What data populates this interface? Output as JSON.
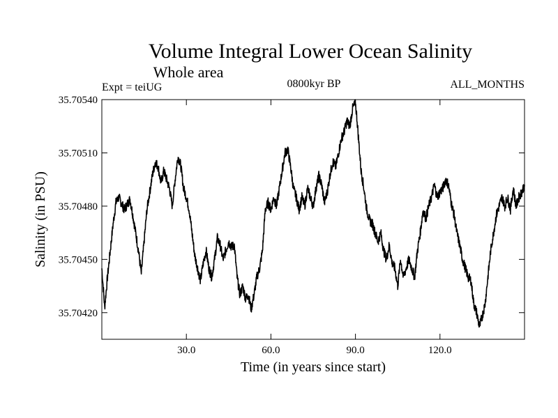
{
  "chart_data": {
    "type": "line",
    "title": "Volume Integral Lower Ocean Salinity",
    "subtitle": "Whole area",
    "expt_label": "Expt = teiUG",
    "period_label": "0800kyr BP",
    "months_label": "ALL_MONTHS",
    "xlabel": "Time (in years since start)",
    "ylabel": "Salinity (in PSU)",
    "xlim": [
      0,
      150
    ],
    "ylim": [
      35.70405,
      35.7054
    ],
    "xticks": [
      30,
      60,
      90,
      120
    ],
    "xtick_labels": [
      "30.0",
      "60.0",
      "90.0",
      "120.0"
    ],
    "yticks": [
      35.7042,
      35.7045,
      35.7048,
      35.7051,
      35.7054
    ],
    "ytick_labels": [
      "35.70420",
      "35.70450",
      "35.70480",
      "35.70510",
      "35.70540"
    ],
    "line_color": "#000000",
    "series": [
      {
        "name": "salinity",
        "points": [
          [
            0.0,
            35.70445
          ],
          [
            1.0,
            35.70423
          ],
          [
            2.0,
            35.7044
          ],
          [
            3.0,
            35.70455
          ],
          [
            4.0,
            35.7047
          ],
          [
            5.0,
            35.70482
          ],
          [
            6.0,
            35.70485
          ],
          [
            8.0,
            35.70478
          ],
          [
            10.0,
            35.70484
          ],
          [
            11.0,
            35.70475
          ],
          [
            12.0,
            35.70465
          ],
          [
            13.0,
            35.70455
          ],
          [
            14.0,
            35.70442
          ],
          [
            15.0,
            35.7046
          ],
          [
            16.0,
            35.70478
          ],
          [
            17.0,
            35.70488
          ],
          [
            18.0,
            35.70498
          ],
          [
            19.0,
            35.70505
          ],
          [
            20.0,
            35.70502
          ],
          [
            21.0,
            35.70493
          ],
          [
            22.0,
            35.705
          ],
          [
            23.0,
            35.70495
          ],
          [
            24.0,
            35.7049
          ],
          [
            25.0,
            35.7048
          ],
          [
            26.0,
            35.70495
          ],
          [
            27.0,
            35.70508
          ],
          [
            28.0,
            35.70503
          ],
          [
            29.0,
            35.7049
          ],
          [
            30.0,
            35.70485
          ],
          [
            31.0,
            35.70478
          ],
          [
            32.0,
            35.70465
          ],
          [
            33.0,
            35.70452
          ],
          [
            34.0,
            35.70445
          ],
          [
            35.0,
            35.70438
          ],
          [
            36.0,
            35.70448
          ],
          [
            37.0,
            35.70455
          ],
          [
            38.0,
            35.70445
          ],
          [
            39.0,
            35.7044
          ],
          [
            40.0,
            35.7045
          ],
          [
            41.0,
            35.70462
          ],
          [
            42.0,
            35.70458
          ],
          [
            43.0,
            35.7045
          ],
          [
            44.0,
            35.70455
          ],
          [
            45.0,
            35.7046
          ],
          [
            46.0,
            35.70457
          ],
          [
            47.0,
            35.70458
          ],
          [
            48.0,
            35.7044
          ],
          [
            49.0,
            35.7043
          ],
          [
            50.0,
            35.70435
          ],
          [
            51.0,
            35.70428
          ],
          [
            52.0,
            35.7043
          ],
          [
            53.0,
            35.70422
          ],
          [
            54.0,
            35.7043
          ],
          [
            55.0,
            35.7044
          ],
          [
            56.0,
            35.70445
          ],
          [
            57.0,
            35.70455
          ],
          [
            58.0,
            35.70478
          ],
          [
            59.0,
            35.70482
          ],
          [
            60.0,
            35.70478
          ],
          [
            61.0,
            35.70485
          ],
          [
            62.0,
            35.7048
          ],
          [
            63.0,
            35.7049
          ],
          [
            64.0,
            35.705
          ],
          [
            65.0,
            35.7051
          ],
          [
            66.0,
            35.70512
          ],
          [
            67.0,
            35.70502
          ],
          [
            68.0,
            35.7049
          ],
          [
            69.0,
            35.70485
          ],
          [
            70.0,
            35.70478
          ],
          [
            71.0,
            35.70485
          ],
          [
            72.0,
            35.7048
          ],
          [
            73.0,
            35.7049
          ],
          [
            74.0,
            35.70485
          ],
          [
            75.0,
            35.7048
          ],
          [
            76.0,
            35.7049
          ],
          [
            77.0,
            35.70497
          ],
          [
            78.0,
            35.70492
          ],
          [
            79.0,
            35.70482
          ],
          [
            80.0,
            35.70488
          ],
          [
            81.0,
            35.70498
          ],
          [
            82.0,
            35.70505
          ],
          [
            83.0,
            35.70502
          ],
          [
            84.0,
            35.7051
          ],
          [
            85.0,
            35.70518
          ],
          [
            86.0,
            35.70522
          ],
          [
            87.0,
            35.70528
          ],
          [
            88.0,
            35.70525
          ],
          [
            89.0,
            35.70535
          ],
          [
            90.0,
            35.70538
          ],
          [
            90.5,
            35.7053
          ],
          [
            91.0,
            35.7052
          ],
          [
            92.0,
            35.705
          ],
          [
            93.0,
            35.7049
          ],
          [
            94.0,
            35.70478
          ],
          [
            95.0,
            35.70472
          ],
          [
            96.0,
            35.7047
          ],
          [
            97.0,
            35.70465
          ],
          [
            98.0,
            35.7046
          ],
          [
            99.0,
            35.70465
          ],
          [
            100.0,
            35.70455
          ],
          [
            101.0,
            35.7045
          ],
          [
            102.0,
            35.70458
          ],
          [
            103.0,
            35.70448
          ],
          [
            104.0,
            35.70445
          ],
          [
            105.0,
            35.70435
          ],
          [
            106.0,
            35.7045
          ],
          [
            107.0,
            35.7044
          ],
          [
            108.0,
            35.70445
          ],
          [
            109.0,
            35.7045
          ],
          [
            110.0,
            35.70445
          ],
          [
            111.0,
            35.7044
          ],
          [
            112.0,
            35.70455
          ],
          [
            113.0,
            35.70465
          ],
          [
            114.0,
            35.70478
          ],
          [
            115.0,
            35.70473
          ],
          [
            116.0,
            35.7048
          ],
          [
            117.0,
            35.70485
          ],
          [
            118.0,
            35.70492
          ],
          [
            119.0,
            35.70485
          ],
          [
            120.0,
            35.70488
          ],
          [
            121.0,
            35.7049
          ],
          [
            122.0,
            35.70495
          ],
          [
            123.0,
            35.70492
          ],
          [
            124.0,
            35.70482
          ],
          [
            125.0,
            35.70475
          ],
          [
            126.0,
            35.70465
          ],
          [
            127.0,
            35.70458
          ],
          [
            128.0,
            35.7045
          ],
          [
            129.0,
            35.70445
          ],
          [
            130.0,
            35.7044
          ],
          [
            131.0,
            35.70438
          ],
          [
            132.0,
            35.70425
          ],
          [
            133.0,
            35.7042
          ],
          [
            134.0,
            35.70412
          ],
          [
            135.0,
            35.70418
          ],
          [
            136.0,
            35.70425
          ],
          [
            137.0,
            35.7044
          ],
          [
            138.0,
            35.70455
          ],
          [
            139.0,
            35.70465
          ],
          [
            140.0,
            35.70475
          ],
          [
            141.0,
            35.7048
          ],
          [
            142.0,
            35.70485
          ],
          [
            143.0,
            35.7048
          ],
          [
            144.0,
            35.70485
          ],
          [
            145.0,
            35.70478
          ],
          [
            146.0,
            35.7049
          ],
          [
            147.0,
            35.7048
          ],
          [
            148.0,
            35.70485
          ],
          [
            149.0,
            35.70488
          ],
          [
            150.0,
            35.70492
          ]
        ]
      }
    ]
  }
}
